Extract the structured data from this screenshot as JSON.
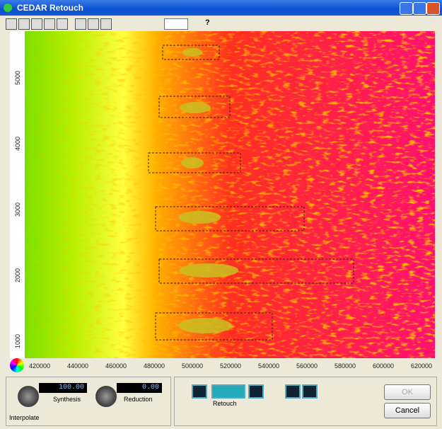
{
  "window": {
    "title": "CEDAR Retouch"
  },
  "toolbar": {
    "help": "?"
  },
  "spectrogram": {
    "y_axis_labels": [
      "5000",
      "4000",
      "3000",
      "2000",
      "1000"
    ],
    "x_axis_labels": [
      "420000",
      "440000",
      "460000",
      "480000",
      "500000",
      "520000",
      "540000",
      "560000",
      "580000",
      "600000",
      "620000"
    ]
  },
  "controls": {
    "synthesis": {
      "value": "100.00",
      "label": "Synthesis"
    },
    "reduction": {
      "value": "0.00",
      "label": "Reduction"
    },
    "group_label": "Interpolate",
    "retouch_label": "Retouch",
    "ok": "OK",
    "cancel": "Cancel"
  }
}
